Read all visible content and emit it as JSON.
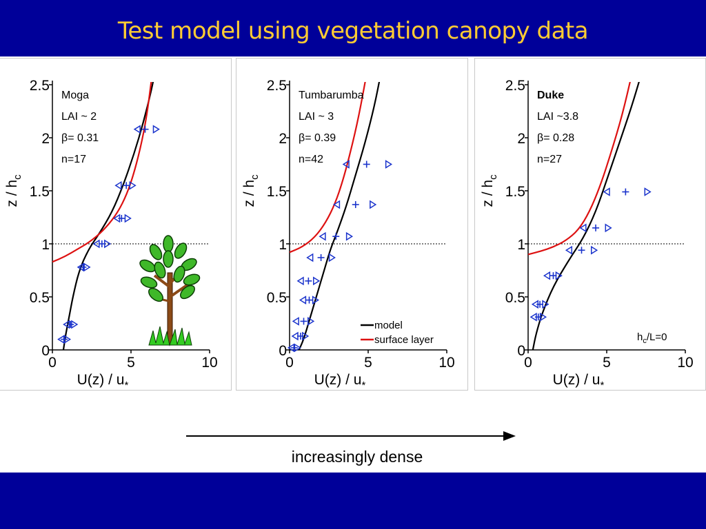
{
  "slide": {
    "title": "Test model using vegetation canopy data",
    "arrow_label": "increasingly dense"
  },
  "colors": {
    "header_band": "#000099",
    "title_text": "#ffcc33",
    "model_line": "#000000",
    "surface_layer_line": "#dd1111",
    "markers": "#1a33cc"
  },
  "icons": {
    "tree": "tree-icon"
  },
  "chart_data": [
    {
      "type": "line",
      "site": "Moga",
      "info": [
        "LAI ~ 2",
        "β= 0.31",
        "n=17"
      ],
      "xlabel": "U(z) / u",
      "xlabel_sub": "*",
      "ylabel": "z / h",
      "ylabel_sub": "c",
      "xlim": [
        0,
        10
      ],
      "ylim": [
        0,
        2.5
      ],
      "xticks": [
        0,
        5,
        10
      ],
      "xtick_labels": [
        "0",
        "5",
        "10"
      ],
      "yticks": [
        0,
        0.5,
        1,
        1.5,
        2,
        2.5
      ],
      "ytick_labels": [
        "0",
        "0.5",
        "1",
        "1.5",
        "2",
        "2.5"
      ],
      "reference_line": 1,
      "series": [
        {
          "role": "model",
          "points": [
            [
              0.7,
              0
            ],
            [
              0.85,
              0.15
            ],
            [
              1.05,
              0.3
            ],
            [
              1.3,
              0.5
            ],
            [
              1.7,
              0.75
            ],
            [
              2.3,
              0.95
            ],
            [
              3.0,
              1.1
            ],
            [
              3.8,
              1.3
            ],
            [
              4.5,
              1.55
            ],
            [
              5.2,
              1.85
            ],
            [
              5.8,
              2.15
            ],
            [
              6.3,
              2.45
            ],
            [
              6.5,
              2.6
            ]
          ]
        },
        {
          "role": "surface_layer",
          "points": [
            [
              0,
              0.83
            ],
            [
              0.8,
              0.88
            ],
            [
              1.6,
              0.95
            ],
            [
              2.4,
              1.02
            ],
            [
              3.2,
              1.12
            ],
            [
              4.0,
              1.26
            ],
            [
              4.6,
              1.42
            ],
            [
              5.1,
              1.62
            ],
            [
              5.6,
              1.9
            ],
            [
              6.0,
              2.2
            ],
            [
              6.35,
              2.6
            ]
          ]
        }
      ],
      "obs": [
        {
          "y": 2.08,
          "left": 5.4,
          "mid": 5.9,
          "right": 6.6
        },
        {
          "y": 1.55,
          "left": 4.2,
          "mid": 4.7,
          "right": 5.1
        },
        {
          "y": 1.24,
          "left": 4.1,
          "mid": 4.4,
          "right": 4.8
        },
        {
          "y": 1.0,
          "left": 2.8,
          "mid": 3.15,
          "right": 3.5
        },
        {
          "y": 0.78,
          "left": 1.8,
          "mid": 1.95,
          "right": 2.2
        },
        {
          "y": 0.24,
          "left": 0.9,
          "mid": 1.15,
          "right": 1.4
        },
        {
          "y": 0.1,
          "left": 0.55,
          "mid": 0.75,
          "right": 0.95
        }
      ],
      "legend": null,
      "annotation": null
    },
    {
      "type": "line",
      "site": "Tumbarumba",
      "info": [
        "LAI ~ 3",
        "β= 0.39",
        "n=42"
      ],
      "xlabel": "U(z) / u",
      "xlabel_sub": "*",
      "ylabel": "z / h",
      "ylabel_sub": "c",
      "xlim": [
        0,
        10
      ],
      "ylim": [
        0,
        2.5
      ],
      "xticks": [
        0,
        5,
        10
      ],
      "xtick_labels": [
        "0",
        "5",
        "10"
      ],
      "yticks": [
        0,
        0.5,
        1,
        1.5,
        2,
        2.5
      ],
      "ytick_labels": [
        "0",
        "0.5",
        "1",
        "1.5",
        "2",
        "2.5"
      ],
      "reference_line": 1,
      "series": [
        {
          "role": "model",
          "points": [
            [
              0.6,
              0
            ],
            [
              0.9,
              0.1
            ],
            [
              1.3,
              0.3
            ],
            [
              1.7,
              0.5
            ],
            [
              2.2,
              0.75
            ],
            [
              2.6,
              0.95
            ],
            [
              3.0,
              1.1
            ],
            [
              3.6,
              1.35
            ],
            [
              4.2,
              1.65
            ],
            [
              4.8,
              1.95
            ],
            [
              5.4,
              2.3
            ],
            [
              5.8,
              2.6
            ]
          ]
        },
        {
          "role": "surface_layer",
          "points": [
            [
              0,
              0.92
            ],
            [
              0.8,
              0.97
            ],
            [
              1.6,
              1.06
            ],
            [
              2.3,
              1.2
            ],
            [
              2.9,
              1.38
            ],
            [
              3.4,
              1.6
            ],
            [
              3.9,
              1.88
            ],
            [
              4.4,
              2.2
            ],
            [
              4.9,
              2.6
            ]
          ]
        }
      ],
      "obs": [
        {
          "y": 1.75,
          "left": 3.6,
          "mid": 4.9,
          "right": 6.3
        },
        {
          "y": 1.37,
          "left": 3.0,
          "mid": 4.2,
          "right": 5.3
        },
        {
          "y": 1.07,
          "left": 2.1,
          "mid": 2.95,
          "right": 3.8
        },
        {
          "y": 0.87,
          "left": 1.3,
          "mid": 2.0,
          "right": 2.7
        },
        {
          "y": 0.65,
          "left": 0.7,
          "mid": 1.2,
          "right": 1.7
        },
        {
          "y": 0.47,
          "left": 0.85,
          "mid": 1.25,
          "right": 1.65
        },
        {
          "y": 0.27,
          "left": 0.4,
          "mid": 0.9,
          "right": 1.35
        },
        {
          "y": 0.13,
          "left": 0.35,
          "mid": 0.7,
          "right": 1.0
        },
        {
          "y": 0.02,
          "left": 0.1,
          "mid": 0.3,
          "right": 0.5
        }
      ],
      "legend": [
        {
          "label": "model",
          "role": "model"
        },
        {
          "label": "surface layer",
          "role": "surface_layer"
        }
      ],
      "annotation": null
    },
    {
      "type": "line",
      "site": "Duke",
      "info": [
        "LAI ~3.8",
        "β= 0.28",
        "n=27"
      ],
      "xlabel": "U(z) / u",
      "xlabel_sub": "*",
      "ylabel": "z / h",
      "ylabel_sub": "c",
      "xlim": [
        0,
        10
      ],
      "ylim": [
        0,
        2.5
      ],
      "xticks": [
        0,
        5,
        10
      ],
      "xtick_labels": [
        "0",
        "5",
        "10"
      ],
      "yticks": [
        0,
        0.5,
        1,
        1.5,
        2,
        2.5
      ],
      "ytick_labels": [
        "0",
        "0.5",
        "1",
        "1.5",
        "2",
        "2.5"
      ],
      "reference_line": 1,
      "series": [
        {
          "role": "model",
          "points": [
            [
              0.3,
              0
            ],
            [
              0.5,
              0.15
            ],
            [
              0.9,
              0.35
            ],
            [
              1.6,
              0.6
            ],
            [
              2.6,
              0.85
            ],
            [
              3.5,
              1.05
            ],
            [
              4.3,
              1.3
            ],
            [
              5.0,
              1.6
            ],
            [
              5.8,
              1.95
            ],
            [
              6.6,
              2.3
            ],
            [
              7.2,
              2.6
            ]
          ]
        },
        {
          "role": "surface_layer",
          "points": [
            [
              0,
              0.9
            ],
            [
              0.8,
              0.93
            ],
            [
              1.6,
              0.97
            ],
            [
              2.4,
              1.03
            ],
            [
              3.2,
              1.13
            ],
            [
              3.9,
              1.3
            ],
            [
              4.6,
              1.55
            ],
            [
              5.3,
              1.87
            ],
            [
              6.0,
              2.22
            ],
            [
              6.6,
              2.6
            ]
          ]
        }
      ],
      "obs": [
        {
          "y": 1.49,
          "left": 5.0,
          "mid": 6.2,
          "right": 7.6
        },
        {
          "y": 1.15,
          "left": 3.5,
          "mid": 4.3,
          "right": 5.1
        },
        {
          "y": 0.94,
          "left": 2.6,
          "mid": 3.4,
          "right": 4.2
        },
        {
          "y": 0.7,
          "left": 1.2,
          "mid": 1.6,
          "right": 1.95
        },
        {
          "y": 0.43,
          "left": 0.45,
          "mid": 0.75,
          "right": 1.1
        },
        {
          "y": 0.31,
          "left": 0.35,
          "mid": 0.65,
          "right": 0.95
        }
      ],
      "legend": null,
      "annotation": {
        "text": "h",
        "sub": "c",
        "rest": "/L=0"
      }
    }
  ]
}
